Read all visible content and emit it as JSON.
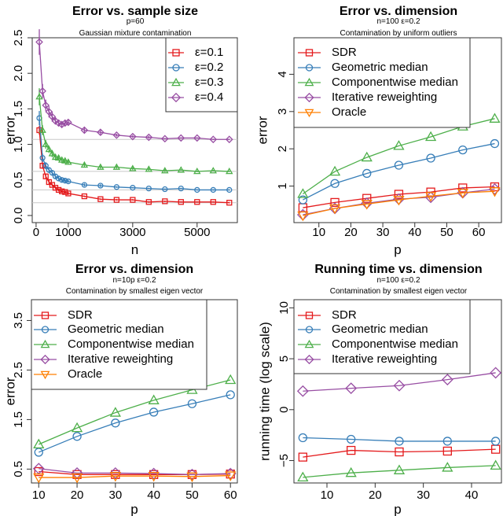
{
  "colors": {
    "red": "#E41A1C",
    "blue": "#377EB8",
    "green": "#4DAF4A",
    "purple": "#984EA3",
    "orange": "#FF7F00",
    "reference": "#C8C8C8"
  },
  "chart_data": [
    {
      "type": "line",
      "title": "Error vs. sample size",
      "subtitle": [
        "p=60",
        "Gaussian mixture contamination"
      ],
      "xlabel": "n",
      "ylabel": "error",
      "xlim": [
        -120,
        6250
      ],
      "ylim": [
        -0.1,
        2.5
      ],
      "xticks": [
        0,
        1000,
        3000,
        5000
      ],
      "xtick_labels": [
        "0",
        "1000",
        "3000",
        "5000"
      ],
      "yticks": [
        0,
        0.5,
        1,
        1.5,
        2,
        2.5
      ],
      "ytick_labels": [
        "0.0",
        "0.5",
        "1.0",
        "1.5",
        "2.0",
        "2.5"
      ],
      "grid": false,
      "legend_position": "top-right",
      "x": [
        100,
        200,
        300,
        400,
        500,
        600,
        700,
        800,
        900,
        1000,
        1500,
        2000,
        2500,
        3000,
        3500,
        4000,
        4500,
        5000,
        5500,
        6000
      ],
      "reference_lines": [
        1.07,
        0.62,
        0.36,
        0.18
      ],
      "series": [
        {
          "name": "ε=0.1",
          "color": "red",
          "marker": "square",
          "values": [
            1.2,
            0.7,
            0.55,
            0.47,
            0.43,
            0.39,
            0.36,
            0.34,
            0.33,
            0.31,
            0.27,
            0.23,
            0.22,
            0.22,
            0.19,
            0.2,
            0.19,
            0.19,
            0.19,
            0.18
          ],
          "error": [
            0.06,
            0.04,
            0.03,
            0.03,
            0.02,
            0.02,
            0.02,
            0.02,
            0.02,
            0.02,
            0.01,
            0.01,
            0.01,
            0.01,
            0.01,
            0.01,
            0.01,
            0.01,
            0.01,
            0.01
          ]
        },
        {
          "name": "ε=0.2",
          "color": "blue",
          "marker": "circle",
          "values": [
            1.37,
            0.81,
            0.7,
            0.64,
            0.6,
            0.55,
            0.52,
            0.5,
            0.49,
            0.48,
            0.43,
            0.42,
            0.4,
            0.39,
            0.38,
            0.37,
            0.38,
            0.36,
            0.36,
            0.36
          ],
          "error": [
            0.1,
            0.06,
            0.05,
            0.04,
            0.04,
            0.03,
            0.03,
            0.03,
            0.03,
            0.02,
            0.02,
            0.02,
            0.01,
            0.01,
            0.01,
            0.01,
            0.01,
            0.01,
            0.01,
            0.01
          ]
        },
        {
          "name": "ε=0.3",
          "color": "green",
          "marker": "triangle-up",
          "values": [
            1.67,
            1.2,
            1.0,
            0.93,
            0.87,
            0.82,
            0.81,
            0.78,
            0.77,
            0.75,
            0.71,
            0.68,
            0.68,
            0.66,
            0.65,
            0.63,
            0.64,
            0.62,
            0.63,
            0.62
          ],
          "error": [
            0.12,
            0.07,
            0.06,
            0.05,
            0.05,
            0.04,
            0.04,
            0.04,
            0.03,
            0.03,
            0.03,
            0.02,
            0.02,
            0.02,
            0.02,
            0.02,
            0.01,
            0.01,
            0.01,
            0.01
          ]
        },
        {
          "name": "ε=0.4",
          "color": "purple",
          "marker": "diamond",
          "values": [
            2.44,
            1.75,
            1.55,
            1.46,
            1.39,
            1.33,
            1.3,
            1.28,
            1.3,
            1.31,
            1.2,
            1.17,
            1.13,
            1.11,
            1.1,
            1.08,
            1.09,
            1.09,
            1.07,
            1.07
          ],
          "error": [
            0.18,
            0.1,
            0.08,
            0.08,
            0.07,
            0.05,
            0.04,
            0.04,
            0.04,
            0.04,
            0.04,
            0.03,
            0.02,
            0.02,
            0.02,
            0.01,
            0.01,
            0.01,
            0.01,
            0.01
          ]
        }
      ]
    },
    {
      "type": "line",
      "title": "Error vs. dimension",
      "subtitle": [
        "n=100   ε=0.2",
        "Contamination by uniform outliers"
      ],
      "xlabel": "p",
      "ylabel": "error",
      "xlim": [
        2.2,
        67.1
      ],
      "ylim": [
        0.02,
        4.98
      ],
      "xticks": [
        10,
        20,
        30,
        40,
        50,
        60
      ],
      "xtick_labels": [
        "10",
        "20",
        "30",
        "40",
        "50",
        "60"
      ],
      "yticks": [
        1,
        2,
        3,
        4
      ],
      "ytick_labels": [
        "1",
        "2",
        "3",
        "4"
      ],
      "grid": false,
      "legend_position": "top-left",
      "x": [
        5,
        15,
        25,
        35,
        45,
        55,
        65
      ],
      "series": [
        {
          "name": "SDR",
          "color": "red",
          "marker": "square",
          "values": [
            0.42,
            0.56,
            0.67,
            0.78,
            0.84,
            0.95,
            0.98
          ]
        },
        {
          "name": "Geometric median",
          "color": "blue",
          "marker": "circle",
          "values": [
            0.63,
            1.07,
            1.34,
            1.56,
            1.75,
            1.97,
            2.14
          ]
        },
        {
          "name": "Componentwise median",
          "color": "green",
          "marker": "triangle-up",
          "values": [
            0.79,
            1.39,
            1.77,
            2.08,
            2.32,
            2.6,
            2.81
          ]
        },
        {
          "name": "Iterative reweighting",
          "color": "purple",
          "marker": "diamond",
          "values": [
            0.23,
            0.4,
            0.54,
            0.65,
            0.7,
            0.82,
            0.92
          ]
        },
        {
          "name": "Oracle",
          "color": "orange",
          "marker": "triangle-down",
          "values": [
            0.21,
            0.4,
            0.52,
            0.63,
            0.73,
            0.82,
            0.86
          ]
        }
      ]
    },
    {
      "type": "line",
      "title": "Error vs. dimension",
      "subtitle": [
        "n=10p   ε=0.2",
        "Contamination by smallest eigen vector"
      ],
      "xlabel": "p",
      "ylabel": "error",
      "xlim": [
        8.1,
        61.8
      ],
      "ylim": [
        0.22,
        3.92
      ],
      "xticks": [
        10,
        20,
        30,
        40,
        50,
        60
      ],
      "xtick_labels": [
        "10",
        "20",
        "30",
        "40",
        "50",
        "60"
      ],
      "yticks": [
        0.5,
        1.5,
        2.5,
        3.5
      ],
      "ytick_labels": [
        "0.5",
        "1.5",
        "2.5",
        "3.5"
      ],
      "grid": false,
      "legend_position": "top-left",
      "x": [
        10,
        20,
        30,
        40,
        50,
        60
      ],
      "series": [
        {
          "name": "SDR",
          "color": "red",
          "marker": "square",
          "values": [
            0.45,
            0.39,
            0.39,
            0.39,
            0.39,
            0.4
          ]
        },
        {
          "name": "Geometric median",
          "color": "blue",
          "marker": "circle",
          "values": [
            0.84,
            1.16,
            1.43,
            1.65,
            1.82,
            2.0
          ]
        },
        {
          "name": "Componentwise median",
          "color": "green",
          "marker": "triangle-up",
          "values": [
            1.0,
            1.33,
            1.64,
            1.89,
            2.1,
            2.3
          ]
        },
        {
          "name": "Iterative reweighting",
          "color": "purple",
          "marker": "diamond",
          "values": [
            0.51,
            0.42,
            0.42,
            0.41,
            0.39,
            0.41
          ]
        },
        {
          "name": "Oracle",
          "color": "orange",
          "marker": "triangle-down",
          "values": [
            0.33,
            0.33,
            0.36,
            0.36,
            0.35,
            0.37
          ]
        }
      ]
    },
    {
      "type": "line",
      "title": "Running time vs. dimension",
      "subtitle": [
        "n=100   ε=0.2",
        "Contamination by smallest eigen vector"
      ],
      "xlabel": "p",
      "ylabel": "running time (log scale)",
      "xlim": [
        3.15,
        46.2
      ],
      "ylim": [
        -7.2,
        10.8
      ],
      "xticks": [
        10,
        20,
        30,
        40
      ],
      "xtick_labels": [
        "10",
        "20",
        "30",
        "40"
      ],
      "yticks": [
        -5,
        0,
        5,
        10
      ],
      "ytick_labels": [
        "−5",
        "0",
        "5",
        "10"
      ],
      "grid": false,
      "legend_position": "top-left",
      "x": [
        5,
        15,
        25,
        35,
        45
      ],
      "series": [
        {
          "name": "SDR",
          "color": "red",
          "marker": "square",
          "values": [
            -4.66,
            -4.0,
            -4.15,
            -4.07,
            -3.89
          ]
        },
        {
          "name": "Geometric median",
          "color": "blue",
          "marker": "circle",
          "values": [
            -2.76,
            -2.91,
            -3.1,
            -3.1,
            -3.1
          ]
        },
        {
          "name": "Componentwise median",
          "color": "green",
          "marker": "triangle-up",
          "values": [
            -6.65,
            -6.21,
            -5.95,
            -5.69,
            -5.49
          ]
        },
        {
          "name": "Iterative reweighting",
          "color": "purple",
          "marker": "diamond",
          "values": [
            1.82,
            2.1,
            2.36,
            2.95,
            3.62
          ]
        }
      ]
    }
  ]
}
